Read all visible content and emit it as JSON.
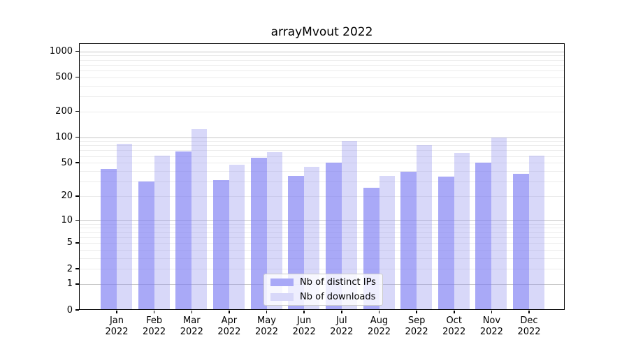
{
  "chart_data": {
    "type": "bar",
    "title": "arrayMvout 2022",
    "categories": [
      "Jan 2022",
      "Feb 2022",
      "Mar 2022",
      "Apr 2022",
      "May 2022",
      "Jun 2022",
      "Jul 2022",
      "Aug 2022",
      "Sep 2022",
      "Oct 2022",
      "Nov 2022",
      "Dec 2022"
    ],
    "x_tick_labels": {
      "months": [
        "Jan",
        "Feb",
        "Mar",
        "Apr",
        "May",
        "Jun",
        "Jul",
        "Aug",
        "Sep",
        "Oct",
        "Nov",
        "Dec"
      ],
      "year": "2022"
    },
    "series": [
      {
        "name": "Nb of distinct IPs",
        "color": "#a9a9f7",
        "values": [
          42,
          30,
          68,
          31,
          57,
          35,
          50,
          25,
          39,
          34,
          50,
          37
        ]
      },
      {
        "name": "Nb of downloads",
        "color": "#d8d8f9",
        "values": [
          83,
          61,
          125,
          47,
          67,
          45,
          91,
          35,
          81,
          66,
          100,
          61
        ]
      }
    ],
    "y_axis": {
      "scale": "log1p",
      "ticks": [
        0,
        1,
        2,
        5,
        10,
        20,
        50,
        100,
        200,
        500,
        1000
      ],
      "range": [
        0,
        1000
      ]
    },
    "grid": {
      "major_at": [
        1,
        10,
        100,
        1000
      ],
      "minor": "2-9 per decade",
      "visible": true
    },
    "legend_position": "lower center",
    "xlabel": "",
    "ylabel": ""
  }
}
